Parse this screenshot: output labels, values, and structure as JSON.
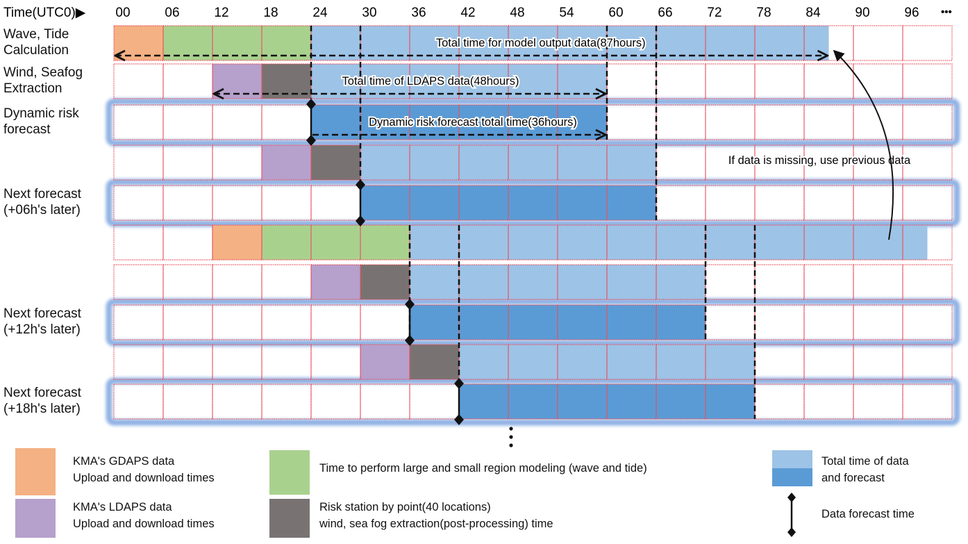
{
  "header": {
    "time_label": "Time(UTC0)▶",
    "ellipsis": "•••"
  },
  "hours": [
    "00",
    "06",
    "12",
    "18",
    "24",
    "30",
    "36",
    "42",
    "48",
    "54",
    "60",
    "66",
    "72",
    "78",
    "84",
    "90",
    "96"
  ],
  "hour_step": 6,
  "colors": {
    "gdaps": "#f4b183",
    "modeling": "#a9d18e",
    "ldaps": "#b6a0cc",
    "extraction": "#787372",
    "data_total": "#9dc3e6",
    "forecast": "#5b9bd5",
    "grid": "#e8505e",
    "highlight": "#8fb1e3"
  },
  "rows": [
    {
      "label": [
        "Wave, Tide",
        "Calculation"
      ],
      "highlight": false,
      "segments": [
        {
          "type": "gdaps",
          "start": 0,
          "end": 6
        },
        {
          "type": "modeling",
          "start": 6,
          "end": 24
        },
        {
          "type": "data_total",
          "start": 24,
          "end": 87
        }
      ]
    },
    {
      "label": [
        "Wind, Seafog",
        "Extraction"
      ],
      "highlight": false,
      "segments": [
        {
          "type": "ldaps",
          "start": 12,
          "end": 18
        },
        {
          "type": "extraction",
          "start": 18,
          "end": 24
        },
        {
          "type": "data_total",
          "start": 24,
          "end": 60
        }
      ]
    },
    {
      "label": [
        "Dynamic risk",
        "forecast"
      ],
      "highlight": true,
      "forecast_time": 24,
      "segments": [
        {
          "type": "forecast",
          "start": 24,
          "end": 60
        }
      ]
    },
    {
      "label": [],
      "highlight": false,
      "segments": [
        {
          "type": "ldaps",
          "start": 18,
          "end": 24
        },
        {
          "type": "extraction",
          "start": 24,
          "end": 30
        },
        {
          "type": "data_total",
          "start": 30,
          "end": 66
        }
      ]
    },
    {
      "label": [
        "Next forecast",
        "(+06h's later)"
      ],
      "highlight": true,
      "forecast_time": 30,
      "segments": [
        {
          "type": "forecast",
          "start": 30,
          "end": 66
        }
      ]
    },
    {
      "label": [],
      "highlight": false,
      "segments": [
        {
          "type": "gdaps",
          "start": 12,
          "end": 18
        },
        {
          "type": "modeling",
          "start": 18,
          "end": 36
        },
        {
          "type": "data_total",
          "start": 36,
          "end": 99
        }
      ]
    },
    {
      "label": [],
      "highlight": false,
      "segments": [
        {
          "type": "ldaps",
          "start": 24,
          "end": 30
        },
        {
          "type": "extraction",
          "start": 30,
          "end": 36
        },
        {
          "type": "data_total",
          "start": 36,
          "end": 72
        }
      ]
    },
    {
      "label": [
        "Next forecast",
        "(+12h's later)"
      ],
      "highlight": true,
      "forecast_time": 36,
      "segments": [
        {
          "type": "forecast",
          "start": 36,
          "end": 72
        }
      ]
    },
    {
      "label": [],
      "highlight": false,
      "segments": [
        {
          "type": "ldaps",
          "start": 30,
          "end": 36
        },
        {
          "type": "extraction",
          "start": 36,
          "end": 42
        },
        {
          "type": "data_total",
          "start": 42,
          "end": 78
        }
      ]
    },
    {
      "label": [
        "Next forecast",
        "(+18h's later)"
      ],
      "highlight": true,
      "forecast_time": 42,
      "segments": [
        {
          "type": "forecast",
          "start": 42,
          "end": 78
        }
      ]
    }
  ],
  "dashed_lines": [
    {
      "hour": 24,
      "from_row": 0,
      "to_row": 1
    },
    {
      "hour": 30,
      "from_row": 0,
      "to_row": 3
    },
    {
      "hour": 60,
      "from_row": 0,
      "to_row": 2
    },
    {
      "hour": 66,
      "from_row": 0,
      "to_row": 4
    },
    {
      "hour": 36,
      "from_row": 5,
      "to_row": 7
    },
    {
      "hour": 42,
      "from_row": 5,
      "to_row": 8
    },
    {
      "hour": 72,
      "from_row": 5,
      "to_row": 7
    },
    {
      "hour": 78,
      "from_row": 5,
      "to_row": 9
    }
  ],
  "spans": [
    {
      "row": 0,
      "start": 0,
      "end": 87,
      "both_ends": true,
      "text": "Total time for model output data(87hours)"
    },
    {
      "row": 1,
      "start": 12,
      "end": 60,
      "both_ends": true,
      "text": "Total time of LDAPS data(48hours)"
    },
    {
      "row": 2,
      "start": 24,
      "end": 60,
      "both_ends": false,
      "text": "Dynamic risk forecast total time(36hours)"
    }
  ],
  "note": "If data is missing, use previous data",
  "legend": {
    "gdaps": [
      "KMA's GDAPS data",
      "Upload and download times"
    ],
    "ldaps": [
      "KMA's LDAPS data",
      "Upload and download times"
    ],
    "modeling": "Time to perform large and small region modeling (wave and tide)",
    "extraction": [
      "Risk station by point(40 locations)",
      "wind, sea fog extraction(post-processing) time"
    ],
    "total": [
      "Total time of data",
      "and forecast"
    ],
    "forecast_time": "Data forecast time"
  }
}
